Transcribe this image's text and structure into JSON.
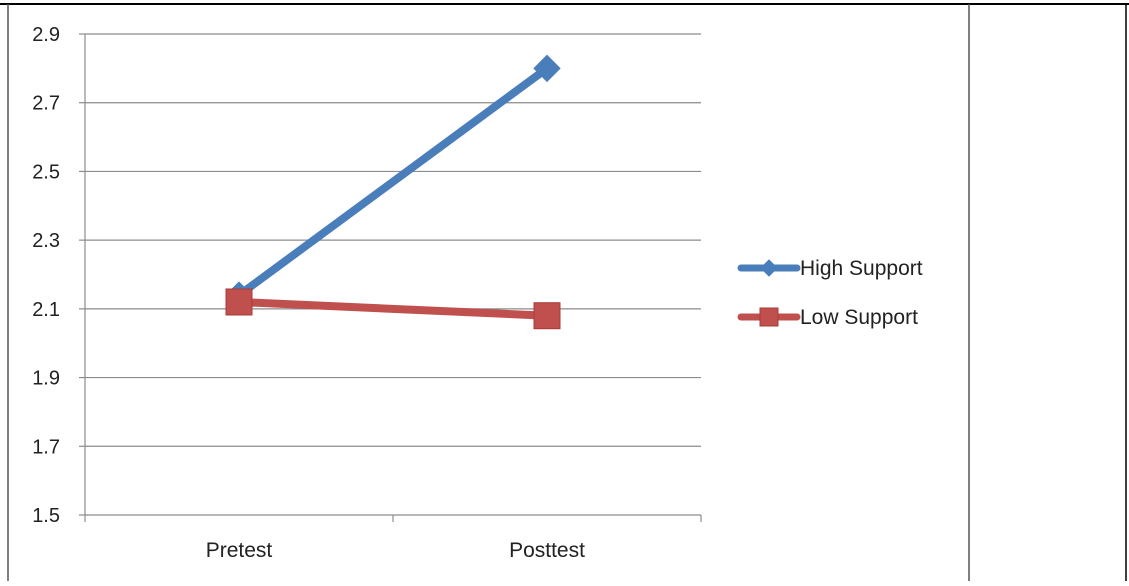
{
  "chart_data": {
    "type": "line",
    "categories": [
      "Pretest",
      "Posttest"
    ],
    "series": [
      {
        "name": "High Support",
        "values": [
          2.14,
          2.8
        ],
        "color": "#4a7ebb",
        "marker": "diamond"
      },
      {
        "name": "Low Support",
        "values": [
          2.12,
          2.08
        ],
        "color": "#c0504d",
        "marker": "square"
      }
    ],
    "ylim": [
      1.5,
      2.9
    ],
    "yticks": [
      "1.5",
      "1.7",
      "1.9",
      "2.1",
      "2.3",
      "2.5",
      "2.7",
      "2.9"
    ],
    "grid": true,
    "legend": "right"
  }
}
